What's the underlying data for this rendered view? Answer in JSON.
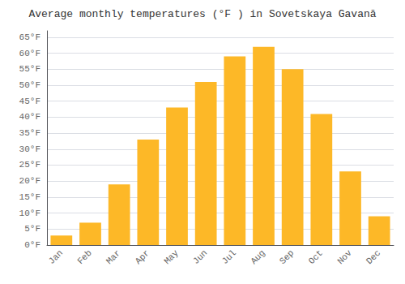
{
  "chart_data": {
    "type": "bar",
    "title": "Average monthly temperatures (°F ) in Sovetskaya Gavanā",
    "categories": [
      "Jan",
      "Feb",
      "Mar",
      "Apr",
      "May",
      "Jun",
      "Jul",
      "Aug",
      "Sep",
      "Oct",
      "Nov",
      "Dec"
    ],
    "values": [
      3,
      7,
      19,
      33,
      43,
      51,
      59,
      62,
      55,
      41,
      23,
      9
    ],
    "color": "#FDB827",
    "ylim": [
      0,
      67
    ],
    "yticks": [
      {
        "value": 0,
        "label": "0°F"
      },
      {
        "value": 5,
        "label": "5°F"
      },
      {
        "value": 10,
        "label": "10°F"
      },
      {
        "value": 15,
        "label": "15°F"
      },
      {
        "value": 20,
        "label": "20°F"
      },
      {
        "value": 25,
        "label": "25°F"
      },
      {
        "value": 30,
        "label": "30°F"
      },
      {
        "value": 35,
        "label": "35°F"
      },
      {
        "value": 40,
        "label": "40°F"
      },
      {
        "value": 45,
        "label": "45°F"
      },
      {
        "value": 50,
        "label": "50°F"
      },
      {
        "value": 55,
        "label": "55°F"
      },
      {
        "value": 60,
        "label": "60°F"
      },
      {
        "value": 65,
        "label": "65°F"
      }
    ],
    "grid": true
  }
}
